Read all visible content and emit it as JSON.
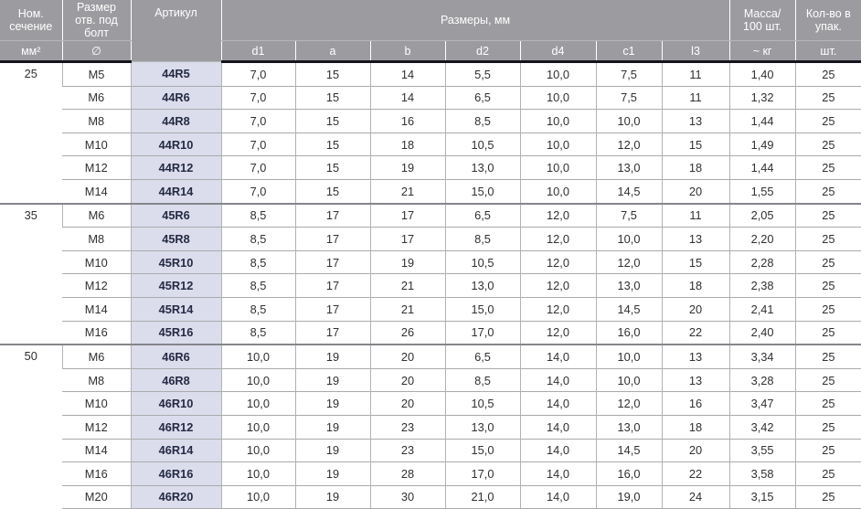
{
  "colors": {
    "header_bg": "#9c9ca0",
    "header_text": "#ffffff",
    "header_underline": "#15151d",
    "article_bg": "#dbddec",
    "article_text": "#252a44",
    "row_border": "#aaaaad",
    "group_border": "#85858a",
    "grid_border": "#b2b2b5"
  },
  "table": {
    "header": {
      "section": {
        "title": "Ном.\nсечение",
        "unit": "мм²"
      },
      "bolt": {
        "title": "Размер\nотв. под\nболт",
        "unit": "∅"
      },
      "article": {
        "title": "Артикул"
      },
      "dimensions": {
        "title": "Размеры, мм",
        "units": [
          "d1",
          "a",
          "b",
          "d2",
          "d4",
          "c1",
          "l3"
        ]
      },
      "mass": {
        "title": "Масса/\n100 шт.",
        "unit": "~ кг"
      },
      "qty": {
        "title": "Кол-во в\nупак.",
        "unit": "шт."
      }
    },
    "groups": [
      {
        "section": "25",
        "rows": [
          {
            "size": "M5",
            "article": "44R5",
            "d1": "7,0",
            "a": "15",
            "b": "14",
            "d2": "5,5",
            "d4": "10,0",
            "c1": "7,5",
            "l3": "11",
            "mass": "1,40",
            "qty": "25"
          },
          {
            "size": "M6",
            "article": "44R6",
            "d1": "7,0",
            "a": "15",
            "b": "14",
            "d2": "6,5",
            "d4": "10,0",
            "c1": "7,5",
            "l3": "11",
            "mass": "1,32",
            "qty": "25"
          },
          {
            "size": "M8",
            "article": "44R8",
            "d1": "7,0",
            "a": "15",
            "b": "16",
            "d2": "8,5",
            "d4": "10,0",
            "c1": "10,0",
            "l3": "13",
            "mass": "1,44",
            "qty": "25"
          },
          {
            "size": "M10",
            "article": "44R10",
            "d1": "7,0",
            "a": "15",
            "b": "18",
            "d2": "10,5",
            "d4": "10,0",
            "c1": "12,0",
            "l3": "15",
            "mass": "1,49",
            "qty": "25"
          },
          {
            "size": "M12",
            "article": "44R12",
            "d1": "7,0",
            "a": "15",
            "b": "19",
            "d2": "13,0",
            "d4": "10,0",
            "c1": "13,0",
            "l3": "18",
            "mass": "1,44",
            "qty": "25"
          },
          {
            "size": "M14",
            "article": "44R14",
            "d1": "7,0",
            "a": "15",
            "b": "21",
            "d2": "15,0",
            "d4": "10,0",
            "c1": "14,5",
            "l3": "20",
            "mass": "1,55",
            "qty": "25"
          }
        ]
      },
      {
        "section": "35",
        "rows": [
          {
            "size": "M6",
            "article": "45R6",
            "d1": "8,5",
            "a": "17",
            "b": "17",
            "d2": "6,5",
            "d4": "12,0",
            "c1": "7,5",
            "l3": "11",
            "mass": "2,05",
            "qty": "25"
          },
          {
            "size": "M8",
            "article": "45R8",
            "d1": "8,5",
            "a": "17",
            "b": "17",
            "d2": "8,5",
            "d4": "12,0",
            "c1": "10,0",
            "l3": "13",
            "mass": "2,20",
            "qty": "25"
          },
          {
            "size": "M10",
            "article": "45R10",
            "d1": "8,5",
            "a": "17",
            "b": "19",
            "d2": "10,5",
            "d4": "12,0",
            "c1": "12,0",
            "l3": "15",
            "mass": "2,28",
            "qty": "25"
          },
          {
            "size": "M12",
            "article": "45R12",
            "d1": "8,5",
            "a": "17",
            "b": "21",
            "d2": "13,0",
            "d4": "12,0",
            "c1": "13,0",
            "l3": "18",
            "mass": "2,38",
            "qty": "25"
          },
          {
            "size": "M14",
            "article": "45R14",
            "d1": "8,5",
            "a": "17",
            "b": "21",
            "d2": "15,0",
            "d4": "12,0",
            "c1": "14,5",
            "l3": "20",
            "mass": "2,41",
            "qty": "25"
          },
          {
            "size": "M16",
            "article": "45R16",
            "d1": "8,5",
            "a": "17",
            "b": "26",
            "d2": "17,0",
            "d4": "12,0",
            "c1": "16,0",
            "l3": "22",
            "mass": "2,40",
            "qty": "25"
          }
        ]
      },
      {
        "section": "50",
        "rows": [
          {
            "size": "M6",
            "article": "46R6",
            "d1": "10,0",
            "a": "19",
            "b": "20",
            "d2": "6,5",
            "d4": "14,0",
            "c1": "10,0",
            "l3": "13",
            "mass": "3,34",
            "qty": "25"
          },
          {
            "size": "M8",
            "article": "46R8",
            "d1": "10,0",
            "a": "19",
            "b": "20",
            "d2": "8,5",
            "d4": "14,0",
            "c1": "10,0",
            "l3": "13",
            "mass": "3,28",
            "qty": "25"
          },
          {
            "size": "M10",
            "article": "46R10",
            "d1": "10,0",
            "a": "19",
            "b": "20",
            "d2": "10,5",
            "d4": "14,0",
            "c1": "12,0",
            "l3": "16",
            "mass": "3,47",
            "qty": "25"
          },
          {
            "size": "M12",
            "article": "46R12",
            "d1": "10,0",
            "a": "19",
            "b": "23",
            "d2": "13,0",
            "d4": "14,0",
            "c1": "13,0",
            "l3": "18",
            "mass": "3,42",
            "qty": "25"
          },
          {
            "size": "M14",
            "article": "46R14",
            "d1": "10,0",
            "a": "19",
            "b": "23",
            "d2": "15,0",
            "d4": "14,0",
            "c1": "14,5",
            "l3": "20",
            "mass": "3,55",
            "qty": "25"
          },
          {
            "size": "M16",
            "article": "46R16",
            "d1": "10,0",
            "a": "19",
            "b": "28",
            "d2": "17,0",
            "d4": "14,0",
            "c1": "16,0",
            "l3": "22",
            "mass": "3,58",
            "qty": "25"
          },
          {
            "size": "M20",
            "article": "46R20",
            "d1": "10,0",
            "a": "19",
            "b": "30",
            "d2": "21,0",
            "d4": "14,0",
            "c1": "19,0",
            "l3": "24",
            "mass": "3,15",
            "qty": "25"
          }
        ]
      }
    ]
  }
}
